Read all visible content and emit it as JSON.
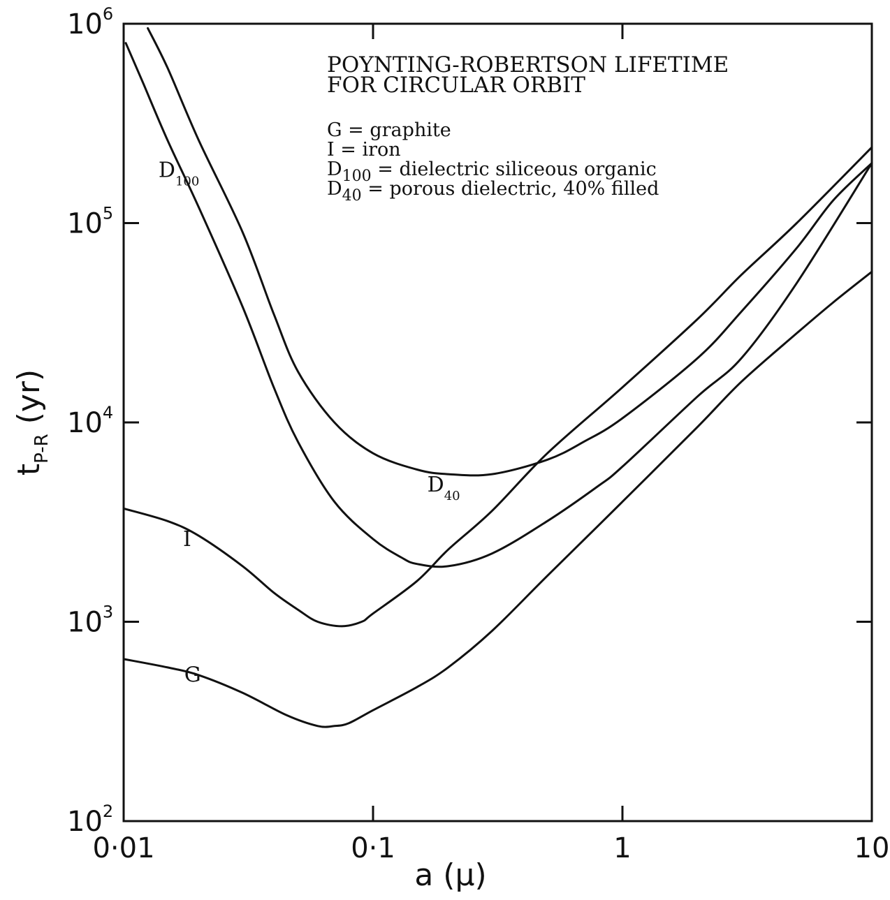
{
  "chart_data": {
    "type": "line",
    "title": [
      "POYNTING-ROBERTSON LIFETIME",
      "FOR CIRCULAR ORBIT"
    ],
    "legend_entries": [
      {
        "lead": "G",
        "sub": "",
        "text": " = graphite"
      },
      {
        "lead": "I",
        "sub": "",
        "text": " = iron"
      },
      {
        "lead": "D",
        "sub": "100",
        "text": " = dielectric siliceous organic"
      },
      {
        "lead": "D",
        "sub": "40",
        "text": " = porous dielectric, 40% filled"
      }
    ],
    "xlabel": "a (μ)",
    "ylabel": {
      "main": "t",
      "sub": "P-R",
      "unit": " (yr)"
    },
    "x_scale": "log",
    "y_scale": "log",
    "xlim": [
      0.01,
      10
    ],
    "ylim": [
      100,
      1000000
    ],
    "x_ticks": [
      {
        "value": 0.01,
        "label": "0·01"
      },
      {
        "value": 0.1,
        "label": "0·1"
      },
      {
        "value": 1,
        "label": "1"
      },
      {
        "value": 10,
        "label": "10"
      }
    ],
    "y_ticks": [
      {
        "value": 100,
        "base": "10",
        "exp": "2"
      },
      {
        "value": 1000,
        "base": "10",
        "exp": "3"
      },
      {
        "value": 10000,
        "base": "10",
        "exp": "4"
      },
      {
        "value": 100000,
        "base": "10",
        "exp": "5"
      },
      {
        "value": 1000000,
        "base": "10",
        "exp": "6"
      }
    ],
    "series": [
      {
        "id": "G",
        "label_main": "G",
        "label_sub": "",
        "label_at": [
          0.0175,
          500
        ],
        "x": [
          0.01,
          0.015,
          0.02,
          0.03,
          0.045,
          0.06,
          0.07,
          0.08,
          0.1,
          0.15,
          0.2,
          0.3,
          0.5,
          1,
          2,
          3,
          5,
          7,
          10
        ],
        "y": [
          650,
          590,
          540,
          440,
          340,
          300,
          300,
          310,
          360,
          470,
          590,
          900,
          1700,
          4000,
          9500,
          16000,
          28000,
          40000,
          57000
        ]
      },
      {
        "id": "I",
        "label_main": "I",
        "label_sub": "",
        "label_at": [
          0.0173,
          2400
        ],
        "x": [
          0.01,
          0.015,
          0.02,
          0.03,
          0.04,
          0.05,
          0.06,
          0.075,
          0.09,
          0.1,
          0.15,
          0.2,
          0.3,
          0.5,
          1,
          2,
          3,
          5,
          10
        ],
        "y": [
          3700,
          3200,
          2700,
          1900,
          1400,
          1150,
          1000,
          950,
          1000,
          1100,
          1600,
          2300,
          3600,
          7000,
          15000,
          33000,
          55000,
          100000,
          240000
        ]
      },
      {
        "id": "D100",
        "label_main": "D",
        "label_sub": "100",
        "label_at": [
          0.0138,
          170000
        ],
        "x": [
          0.0102,
          0.012,
          0.015,
          0.02,
          0.03,
          0.04,
          0.05,
          0.07,
          0.1,
          0.13,
          0.15,
          0.2,
          0.3,
          0.5,
          0.8,
          1,
          2,
          3,
          5,
          10
        ],
        "y": [
          800000,
          500000,
          260000,
          120000,
          38000,
          15000,
          8000,
          4000,
          2600,
          2100,
          1950,
          1900,
          2200,
          3200,
          4800,
          6000,
          13500,
          21000,
          50000,
          200000
        ]
      },
      {
        "id": "D40",
        "label_main": "D",
        "label_sub": "40",
        "label_at": [
          0.165,
          4500
        ],
        "x": [
          0.0125,
          0.015,
          0.02,
          0.03,
          0.04,
          0.05,
          0.07,
          0.1,
          0.15,
          0.2,
          0.3,
          0.5,
          0.7,
          1,
          2,
          3,
          5,
          7,
          10
        ],
        "y": [
          950000,
          600000,
          260000,
          90000,
          35000,
          18000,
          10000,
          7000,
          5800,
          5500,
          5500,
          6500,
          8000,
          10500,
          21000,
          36000,
          75000,
          130000,
          200000
        ]
      }
    ],
    "grid": false,
    "legend_position": "top-center (inside plot)"
  }
}
